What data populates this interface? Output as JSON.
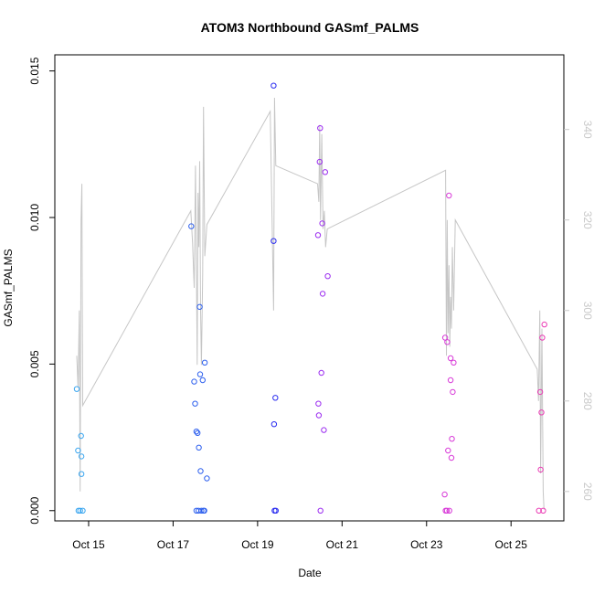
{
  "chart_data": {
    "type": "scatter",
    "title": "ATOM3 Northbound GASmf_PALMS",
    "xlabel": "Date",
    "ylabel": "GASmf_PALMS",
    "x_range_days": [
      14.2,
      26.25
    ],
    "ylim": [
      -0.00035,
      0.01555
    ],
    "y2lim": [
      253.5,
      356.5
    ],
    "x_ticks": [
      {
        "day": 15,
        "label": "Oct 15"
      },
      {
        "day": 17,
        "label": "Oct 17"
      },
      {
        "day": 19,
        "label": "Oct 19"
      },
      {
        "day": 21,
        "label": "Oct 21"
      },
      {
        "day": 23,
        "label": "Oct 23"
      },
      {
        "day": 25,
        "label": "Oct 25"
      }
    ],
    "y_ticks": [
      {
        "value": 0.0,
        "label": "0.000"
      },
      {
        "value": 0.005,
        "label": "0.005"
      },
      {
        "value": 0.01,
        "label": "0.010"
      },
      {
        "value": 0.015,
        "label": "0.015"
      }
    ],
    "y2_ticks": [
      {
        "value": 260,
        "label": "260"
      },
      {
        "value": 280,
        "label": "280"
      },
      {
        "value": 300,
        "label": "300"
      },
      {
        "value": 320,
        "label": "320"
      },
      {
        "value": 340,
        "label": "340"
      }
    ],
    "points": [
      {
        "x": 14.72,
        "y": 0.00415,
        "color": "#3aa6f0"
      },
      {
        "x": 14.75,
        "y": 0.00205,
        "color": "#3aa6f0"
      },
      {
        "x": 14.76,
        "y": 0.0,
        "color": "#3aa6f0"
      },
      {
        "x": 14.8,
        "y": 0.0,
        "color": "#3aa6f0"
      },
      {
        "x": 14.82,
        "y": 0.00255,
        "color": "#3aa6f0"
      },
      {
        "x": 14.83,
        "y": 0.00185,
        "color": "#3aa6f0"
      },
      {
        "x": 14.83,
        "y": 0.00125,
        "color": "#3aa6f0"
      },
      {
        "x": 14.86,
        "y": 0.0,
        "color": "#3aa6f0"
      },
      {
        "x": 17.43,
        "y": 0.0097,
        "color": "#2e60ee"
      },
      {
        "x": 17.5,
        "y": 0.0044,
        "color": "#2e60ee"
      },
      {
        "x": 17.52,
        "y": 0.00365,
        "color": "#2e60ee"
      },
      {
        "x": 17.55,
        "y": 0.0027,
        "color": "#2e60ee"
      },
      {
        "x": 17.55,
        "y": 0.0,
        "color": "#2e60ee"
      },
      {
        "x": 17.58,
        "y": 0.00265,
        "color": "#2e60ee"
      },
      {
        "x": 17.6,
        "y": 0.0,
        "color": "#2e60ee"
      },
      {
        "x": 17.61,
        "y": 0.00215,
        "color": "#2e60ee"
      },
      {
        "x": 17.63,
        "y": 0.00695,
        "color": "#2e60ee"
      },
      {
        "x": 17.64,
        "y": 0.00465,
        "color": "#2e60ee"
      },
      {
        "x": 17.65,
        "y": 0.00135,
        "color": "#2e60ee"
      },
      {
        "x": 17.67,
        "y": 0.0,
        "color": "#2e60ee"
      },
      {
        "x": 17.7,
        "y": 0.00445,
        "color": "#2e60ee"
      },
      {
        "x": 17.72,
        "y": 0.0,
        "color": "#2e60ee"
      },
      {
        "x": 17.74,
        "y": 0.0,
        "color": "#2e60ee"
      },
      {
        "x": 17.75,
        "y": 0.00505,
        "color": "#2e60ee"
      },
      {
        "x": 17.8,
        "y": 0.0011,
        "color": "#2e60ee"
      },
      {
        "x": 19.38,
        "y": 0.0145,
        "color": "#2a2cf0"
      },
      {
        "x": 19.38,
        "y": 0.0092,
        "color": "#2a2cf0"
      },
      {
        "x": 19.39,
        "y": 0.00295,
        "color": "#2a2cf0"
      },
      {
        "x": 19.4,
        "y": 0.0,
        "color": "#2a2cf0"
      },
      {
        "x": 19.42,
        "y": 0.00385,
        "color": "#2a2cf0"
      },
      {
        "x": 19.43,
        "y": 0.0,
        "color": "#2a2cf0"
      },
      {
        "x": 20.43,
        "y": 0.0094,
        "color": "#9b2cf0"
      },
      {
        "x": 20.44,
        "y": 0.00365,
        "color": "#9b2cf0"
      },
      {
        "x": 20.45,
        "y": 0.00325,
        "color": "#9b2cf0"
      },
      {
        "x": 20.47,
        "y": 0.0119,
        "color": "#9b2cf0"
      },
      {
        "x": 20.48,
        "y": 0.01305,
        "color": "#9b2cf0"
      },
      {
        "x": 20.49,
        "y": 0.0,
        "color": "#9b2cf0"
      },
      {
        "x": 20.51,
        "y": 0.0047,
        "color": "#9b2cf0"
      },
      {
        "x": 20.53,
        "y": 0.0098,
        "color": "#9b2cf0"
      },
      {
        "x": 20.54,
        "y": 0.0074,
        "color": "#9b2cf0"
      },
      {
        "x": 20.57,
        "y": 0.00275,
        "color": "#9b2cf0"
      },
      {
        "x": 20.6,
        "y": 0.01155,
        "color": "#9b2cf0"
      },
      {
        "x": 20.66,
        "y": 0.008,
        "color": "#9b2cf0"
      },
      {
        "x": 23.43,
        "y": 0.00055,
        "color": "#d83ad8"
      },
      {
        "x": 23.44,
        "y": 0.0059,
        "color": "#d83ad8"
      },
      {
        "x": 23.45,
        "y": 0.0,
        "color": "#d83ad8"
      },
      {
        "x": 23.48,
        "y": 0.0,
        "color": "#d83ad8"
      },
      {
        "x": 23.49,
        "y": 0.00575,
        "color": "#d83ad8"
      },
      {
        "x": 23.51,
        "y": 0.00205,
        "color": "#d83ad8"
      },
      {
        "x": 23.53,
        "y": 0.01075,
        "color": "#d83ad8"
      },
      {
        "x": 23.54,
        "y": 0.0,
        "color": "#d83ad8"
      },
      {
        "x": 23.57,
        "y": 0.00445,
        "color": "#d83ad8"
      },
      {
        "x": 23.57,
        "y": 0.0052,
        "color": "#d83ad8"
      },
      {
        "x": 23.59,
        "y": 0.0018,
        "color": "#d83ad8"
      },
      {
        "x": 23.6,
        "y": 0.00245,
        "color": "#d83ad8"
      },
      {
        "x": 23.62,
        "y": 0.00405,
        "color": "#d83ad8"
      },
      {
        "x": 23.64,
        "y": 0.00505,
        "color": "#d83ad8"
      },
      {
        "x": 25.66,
        "y": 0.0,
        "color": "#ea3ab4"
      },
      {
        "x": 25.69,
        "y": 0.00405,
        "color": "#ea3ab4"
      },
      {
        "x": 25.7,
        "y": 0.0014,
        "color": "#ea3ab4"
      },
      {
        "x": 25.72,
        "y": 0.00335,
        "color": "#ea3ab4"
      },
      {
        "x": 25.74,
        "y": 0.0059,
        "color": "#ea3ab4"
      },
      {
        "x": 25.76,
        "y": 0.0,
        "color": "#ea3ab4"
      },
      {
        "x": 25.79,
        "y": 0.00635,
        "color": "#ea3ab4"
      }
    ],
    "secondary_line": {
      "color": "#c6c6c6",
      "points": [
        [
          14.72,
          290
        ],
        [
          14.75,
          283
        ],
        [
          14.78,
          300
        ],
        [
          14.8,
          260
        ],
        [
          14.82,
          320
        ],
        [
          14.84,
          328
        ],
        [
          14.86,
          279
        ],
        [
          17.42,
          322
        ],
        [
          17.46,
          315
        ],
        [
          17.5,
          305
        ],
        [
          17.53,
          332
        ],
        [
          17.55,
          310
        ],
        [
          17.57,
          288
        ],
        [
          17.59,
          326
        ],
        [
          17.61,
          314
        ],
        [
          17.63,
          333
        ],
        [
          17.65,
          300
        ],
        [
          17.67,
          288
        ],
        [
          17.7,
          308
        ],
        [
          17.72,
          345
        ],
        [
          17.75,
          312
        ],
        [
          17.8,
          319
        ],
        [
          19.3,
          344
        ],
        [
          19.38,
          300
        ],
        [
          19.4,
          347
        ],
        [
          19.43,
          332
        ],
        [
          20.42,
          328
        ],
        [
          20.45,
          324
        ],
        [
          20.47,
          341
        ],
        [
          20.49,
          320
        ],
        [
          20.52,
          339
        ],
        [
          20.55,
          318
        ],
        [
          20.58,
          322
        ],
        [
          20.61,
          314
        ],
        [
          20.65,
          318
        ],
        [
          23.45,
          331
        ],
        [
          23.47,
          290
        ],
        [
          23.49,
          320
        ],
        [
          23.51,
          295
        ],
        [
          23.53,
          310
        ],
        [
          23.55,
          292
        ],
        [
          23.57,
          303
        ],
        [
          23.59,
          296
        ],
        [
          23.61,
          314
        ],
        [
          23.64,
          300
        ],
        [
          23.68,
          320
        ],
        [
          25.62,
          287
        ],
        [
          25.65,
          280
        ],
        [
          25.68,
          300
        ],
        [
          25.7,
          264
        ],
        [
          25.73,
          296
        ],
        [
          25.76,
          260
        ],
        [
          25.78,
          256
        ]
      ]
    }
  }
}
